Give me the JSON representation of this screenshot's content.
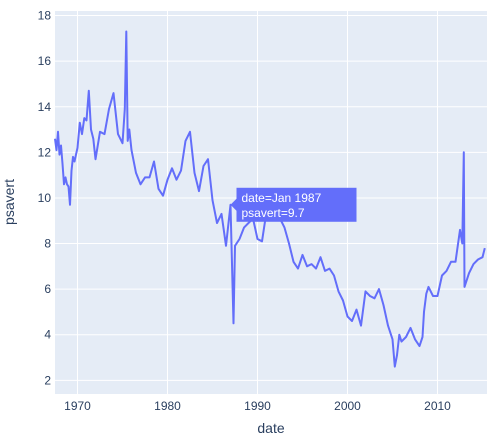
{
  "chart_data": {
    "type": "line",
    "xlabel": "date",
    "ylabel": "psavert",
    "xlim": [
      1967.5,
      2015.5
    ],
    "ylim": [
      1.4,
      18.2
    ],
    "x_ticks": [
      1970,
      1980,
      1990,
      2000,
      2010
    ],
    "x_tick_labels": [
      "1970",
      "1980",
      "1990",
      "2000",
      "2010"
    ],
    "y_ticks": [
      2,
      4,
      6,
      8,
      10,
      12,
      14,
      16,
      18
    ],
    "y_tick_labels": [
      "2",
      "4",
      "6",
      "8",
      "10",
      "12",
      "14",
      "16",
      "18"
    ],
    "colors": {
      "plot_bg": "#e5ecf6",
      "grid": "#ffffff",
      "line": "#636efa",
      "axis_text": "#2a3f5f"
    },
    "grid": true,
    "series": [
      {
        "x": [
          1967.5,
          1967.67,
          1967.83,
          1968.0,
          1968.17,
          1968.33,
          1968.5,
          1968.67,
          1968.83,
          1969.0,
          1969.17,
          1969.33,
          1969.5,
          1969.67,
          1969.83,
          1970.0,
          1970.25,
          1970.5,
          1970.75,
          1971.0,
          1971.25,
          1971.5,
          1971.75,
          1972.0,
          1972.5,
          1973.0,
          1973.5,
          1974.0,
          1974.5,
          1975.0,
          1975.25,
          1975.42,
          1975.58,
          1975.75,
          1976.0,
          1976.5,
          1977.0,
          1977.5,
          1978.0,
          1978.5,
          1979.0,
          1979.5,
          1980.0,
          1980.5,
          1981.0,
          1981.5,
          1982.0,
          1982.5,
          1983.0,
          1983.5,
          1984.0,
          1984.5,
          1985.0,
          1985.5,
          1986.0,
          1986.5,
          1987.0,
          1987.33,
          1987.5,
          1988.0,
          1988.5,
          1989.0,
          1989.5,
          1990.0,
          1990.5,
          1991.0,
          1991.5,
          1992.0,
          1992.5,
          1993.0,
          1993.5,
          1994.0,
          1994.5,
          1995.0,
          1995.5,
          1996.0,
          1996.5,
          1997.0,
          1997.5,
          1998.0,
          1998.5,
          1999.0,
          1999.5,
          2000.0,
          2000.5,
          2001.0,
          2001.5,
          2002.0,
          2002.5,
          2003.0,
          2003.5,
          2004.0,
          2004.5,
          2005.0,
          2005.25,
          2005.5,
          2005.75,
          2006.0,
          2006.5,
          2007.0,
          2007.5,
          2008.0,
          2008.33,
          2008.5,
          2008.75,
          2009.0,
          2009.5,
          2010.0,
          2010.5,
          2011.0,
          2011.5,
          2012.0,
          2012.5,
          2012.75,
          2012.92,
          2013.0,
          2013.5,
          2014.0,
          2014.5,
          2015.0,
          2015.25
        ],
        "y": [
          12.6,
          12.1,
          12.9,
          11.9,
          12.3,
          11.5,
          10.6,
          10.9,
          10.6,
          10.5,
          9.7,
          11.2,
          11.8,
          11.6,
          11.9,
          12.2,
          13.3,
          12.8,
          13.5,
          13.4,
          14.7,
          13.0,
          12.6,
          11.7,
          12.9,
          12.8,
          13.9,
          14.6,
          12.8,
          12.4,
          13.9,
          17.3,
          12.5,
          13.0,
          12.1,
          11.1,
          10.6,
          10.9,
          10.9,
          11.6,
          10.4,
          10.1,
          10.8,
          11.3,
          10.8,
          11.2,
          12.5,
          12.9,
          11.1,
          10.3,
          11.4,
          11.7,
          9.9,
          8.9,
          9.3,
          7.9,
          9.7,
          4.5,
          7.9,
          8.2,
          8.7,
          8.9,
          9.1,
          8.2,
          8.1,
          9.4,
          9.5,
          9.9,
          9.1,
          8.7,
          8.0,
          7.2,
          6.9,
          7.5,
          7.0,
          7.1,
          6.9,
          7.4,
          6.8,
          6.9,
          6.6,
          5.9,
          5.5,
          4.8,
          4.6,
          5.1,
          4.4,
          5.9,
          5.7,
          5.6,
          6.0,
          5.3,
          4.4,
          3.8,
          2.6,
          3.1,
          4.0,
          3.7,
          3.9,
          4.3,
          3.8,
          3.5,
          3.9,
          5.0,
          5.8,
          6.1,
          5.7,
          5.7,
          6.6,
          6.8,
          7.2,
          7.2,
          8.6,
          8.0,
          12.0,
          6.1,
          6.7,
          7.1,
          7.3,
          7.4,
          7.8
        ]
      }
    ],
    "hover": {
      "x_value": "Jan 1987",
      "y_value": 9.7,
      "line1": "date=Jan 1987",
      "line2": "psavert=9.7"
    }
  }
}
